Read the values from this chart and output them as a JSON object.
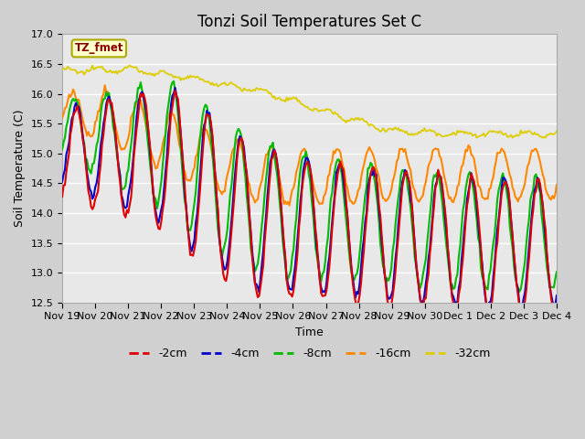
{
  "title": "Tonzi Soil Temperatures Set C",
  "xlabel": "Time",
  "ylabel": "Soil Temperature (C)",
  "ylim": [
    12.5,
    17.0
  ],
  "yticks": [
    12.5,
    13.0,
    13.5,
    14.0,
    14.5,
    15.0,
    15.5,
    16.0,
    16.5,
    17.0
  ],
  "colors": {
    "-2cm": "#dd0000",
    "-4cm": "#0000cc",
    "-8cm": "#00bb00",
    "-16cm": "#ff8800",
    "-32cm": "#ddcc00"
  },
  "annotation_label": "TZ_fmet",
  "annotation_color": "#880000",
  "annotation_bg": "#ffffcc",
  "annotation_border": "#aaaa00",
  "plot_bg": "#e8e8e8",
  "fig_bg": "#d0d0d0",
  "grid_color": "#ffffff",
  "title_fontsize": 12,
  "label_fontsize": 9,
  "tick_fontsize": 8
}
